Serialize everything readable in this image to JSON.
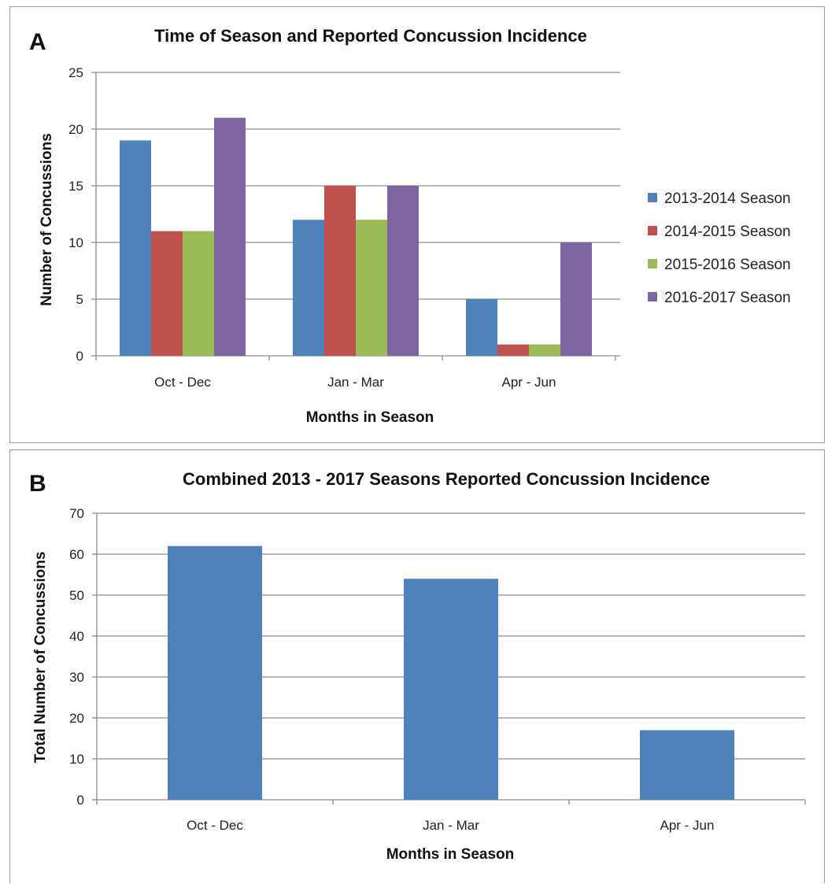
{
  "chart_data": [
    {
      "panel": "A",
      "type": "bar",
      "title": "Time of Season and Reported Concussion Incidence",
      "xlabel": "Months in Season",
      "ylabel": "Number of Concussions",
      "ylim": [
        0,
        25
      ],
      "yticks": [
        0,
        5,
        10,
        15,
        20,
        25
      ],
      "categories": [
        "Oct - Dec",
        "Jan - Mar",
        "Apr - Jun"
      ],
      "series": [
        {
          "name": "2013-2014 Season",
          "color": "#4f81bd",
          "values": [
            19,
            12,
            5
          ]
        },
        {
          "name": "2014-2015 Season",
          "color": "#c0504d",
          "values": [
            11,
            15,
            1
          ]
        },
        {
          "name": "2015-2016 Season",
          "color": "#9bbb59",
          "values": [
            11,
            12,
            1
          ]
        },
        {
          "name": "2016-2017 Season",
          "color": "#8064a2",
          "values": [
            21,
            15,
            10
          ]
        }
      ],
      "grid": true,
      "legend": "right"
    },
    {
      "panel": "B",
      "type": "bar",
      "title": "Combined 2013 - 2017 Seasons Reported Concussion  Incidence",
      "xlabel": "Months in Season",
      "ylabel": "Total Number of Concussions",
      "ylim": [
        0,
        70
      ],
      "yticks": [
        0,
        10,
        20,
        30,
        40,
        50,
        60,
        70
      ],
      "categories": [
        "Oct - Dec",
        "Jan - Mar",
        "Apr - Jun"
      ],
      "series": [
        {
          "color": "#4f81bd",
          "values": [
            62,
            54,
            17
          ]
        }
      ],
      "grid": true
    }
  ]
}
